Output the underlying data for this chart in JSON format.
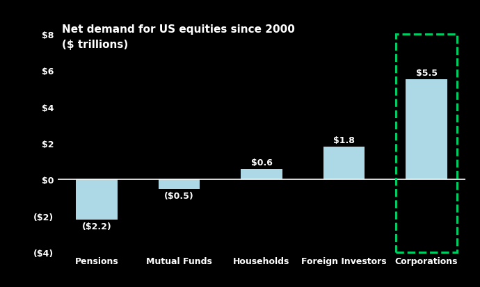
{
  "title_line1": "Net demand for US equities since 2000",
  "title_line2": "($ trillions)",
  "categories": [
    "Pensions",
    "Mutual Funds",
    "Households",
    "Foreign Investors",
    "Corporations"
  ],
  "values": [
    -2.2,
    -0.5,
    0.6,
    1.8,
    5.5
  ],
  "labels": [
    "($2.2)",
    "($0.5)",
    "$0.6",
    "$1.8",
    "$5.5"
  ],
  "bar_color": "#add8e6",
  "background_color": "#000000",
  "text_color": "#ffffff",
  "dashed_box_color": "#00cc66",
  "ylim": [
    -4,
    8
  ],
  "yticks": [
    -4,
    -2,
    0,
    2,
    4,
    6,
    8
  ],
  "ytick_labels": [
    "($4)",
    "($2)",
    "$0",
    "$2",
    "$4",
    "$6",
    "$8"
  ],
  "highlight_index": 4,
  "title_fontsize": 11,
  "tick_fontsize": 9,
  "label_fontsize": 9,
  "bar_width": 0.5,
  "figwidth": 6.9,
  "figheight": 4.14,
  "dpi": 100
}
